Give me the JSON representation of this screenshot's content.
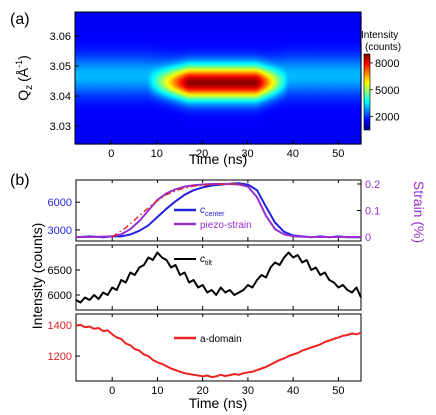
{
  "chart_data": [
    {
      "panel": "(a)",
      "type": "heatmap",
      "xlabel": "Time (ns)",
      "ylabel": "Q",
      "ylabel_sub": "z",
      "ylabel_unit": "(Å",
      "ylabel_sup": "-1",
      "ylabel_close": ")",
      "xlim": [
        -8,
        55
      ],
      "ylim": [
        3.024,
        3.068
      ],
      "xticks": [
        0,
        10,
        20,
        30,
        40,
        50
      ],
      "yticks": [
        3.03,
        3.04,
        3.05,
        3.06
      ],
      "ytick_labels": [
        "3.03",
        "3.04",
        "3.05",
        "3.06"
      ],
      "colorbar": {
        "title_line1": "Intensity",
        "title_line2": "(counts)",
        "range": [
          500,
          9000
        ],
        "ticks": [
          2000,
          5000,
          8000
        ],
        "colors": [
          "#000080",
          "#0000ff",
          "#0080ff",
          "#00ffff",
          "#80ff80",
          "#ffff00",
          "#ff8000",
          "#ff0000",
          "#800000"
        ]
      },
      "peak": {
        "q_center": 3.0445,
        "q_width": 0.0055,
        "max_counts": 8300,
        "rise_start": 8,
        "rise_end": 17,
        "fall_start": 32,
        "fall_end": 39,
        "base_counts": 1500
      }
    },
    {
      "panel": "(b)",
      "type": "line",
      "xlabel": "Time (ns)",
      "ylabel": "Intensity (counts)",
      "xlim": [
        -8,
        55
      ],
      "xticks": [
        0,
        10,
        20,
        30,
        40,
        50
      ],
      "subplots": [
        {
          "ylim": [
            1800,
            8400
          ],
          "yticks": [
            3000,
            6000
          ],
          "right_axis": {
            "label": "Strain (%)",
            "ylim": [
              -0.015,
              0.215
            ],
            "ticks": [
              0,
              0.1,
              0.2
            ],
            "tick_labels": [
              "0",
              "0.1",
              "0.2"
            ],
            "color": "#9a2fd0"
          },
          "series": [
            {
              "name": "c",
              "name_sub": "center",
              "color": "#2222dd",
              "x": [
                -8,
                -5,
                -2,
                0,
                2,
                4,
                6,
                8,
                10,
                12,
                14,
                16,
                18,
                20,
                22,
                24,
                26,
                28,
                30,
                32,
                34,
                36,
                38,
                40,
                42,
                44,
                46,
                48,
                50,
                52,
                55
              ],
              "y": [
                2200,
                2300,
                2200,
                2300,
                2300,
                2500,
                2900,
                3500,
                4400,
                5300,
                6100,
                6800,
                7300,
                7600,
                7800,
                7900,
                8000,
                8050,
                7900,
                7300,
                5500,
                3800,
                2800,
                2400,
                2300,
                2200,
                2300,
                2200,
                2300,
                2200,
                2200
              ]
            },
            {
              "name": "piezo-strain",
              "color": "#9a2fd0",
              "axis": "right",
              "x": [
                -8,
                -4,
                0,
                2,
                4,
                6,
                8,
                10,
                12,
                14,
                16,
                18,
                20,
                22,
                24,
                26,
                28,
                30,
                32,
                34,
                36,
                38,
                40,
                42,
                44,
                48,
                52,
                55
              ],
              "y": [
                0,
                0,
                0.003,
                0.01,
                0.03,
                0.06,
                0.1,
                0.14,
                0.165,
                0.18,
                0.19,
                0.195,
                0.198,
                0.2,
                0.2,
                0.2,
                0.198,
                0.19,
                0.15,
                0.08,
                0.03,
                0.01,
                0.003,
                0.001,
                0,
                0,
                0,
                0
              ]
            },
            {
              "style": "dash-dot",
              "color": "#dd2222",
              "axis": "right",
              "x": [
                0,
                3,
                6,
                9,
                12,
                15,
                18,
                22,
                26,
                29
              ],
              "y": [
                0.0,
                0.035,
                0.08,
                0.125,
                0.16,
                0.18,
                0.192,
                0.198,
                0.2,
                0.2
              ]
            }
          ]
        },
        {
          "ylim": [
            5700,
            7000
          ],
          "yticks": [
            6000,
            6500
          ],
          "series": [
            {
              "name": "c",
              "name_sub": "tilt",
              "color": "#000000",
              "x": [
                -8,
                -7,
                -6,
                -5,
                -4,
                -3,
                -2,
                -1,
                0,
                1,
                2,
                3,
                4,
                5,
                6,
                7,
                8,
                9,
                10,
                11,
                12,
                13,
                14,
                15,
                16,
                17,
                18,
                19,
                20,
                21,
                22,
                23,
                24,
                25,
                26,
                27,
                28,
                29,
                30,
                31,
                32,
                33,
                34,
                35,
                36,
                37,
                38,
                39,
                40,
                41,
                42,
                43,
                44,
                45,
                46,
                47,
                48,
                49,
                50,
                51,
                52,
                53,
                54,
                55
              ],
              "y": [
                5900,
                5850,
                5950,
                5900,
                6000,
                5920,
                6050,
                6000,
                6150,
                6100,
                6300,
                6250,
                6450,
                6400,
                6550,
                6600,
                6750,
                6700,
                6850,
                6750,
                6700,
                6550,
                6600,
                6400,
                6450,
                6250,
                6300,
                6150,
                6200,
                6050,
                6100,
                6000,
                6150,
                6050,
                6100,
                6000,
                6050,
                6100,
                6200,
                6150,
                6300,
                6400,
                6350,
                6550,
                6650,
                6600,
                6750,
                6850,
                6750,
                6800,
                6650,
                6700,
                6500,
                6550,
                6400,
                6450,
                6300,
                6250,
                6150,
                6200,
                6100,
                6050,
                6150,
                5950
              ]
            }
          ]
        },
        {
          "ylim": [
            1040,
            1470
          ],
          "yticks": [
            1200,
            1400
          ],
          "series": [
            {
              "name": "a-domain",
              "color": "#ee2222",
              "x": [
                -8,
                -7,
                -6,
                -5,
                -4,
                -3,
                -2,
                -1,
                0,
                1,
                2,
                3,
                4,
                5,
                6,
                7,
                8,
                9,
                10,
                11,
                12,
                13,
                14,
                15,
                16,
                17,
                18,
                19,
                20,
                21,
                22,
                23,
                24,
                25,
                26,
                27,
                28,
                29,
                30,
                31,
                32,
                33,
                34,
                35,
                36,
                37,
                38,
                39,
                40,
                41,
                42,
                43,
                44,
                45,
                46,
                47,
                48,
                49,
                50,
                51,
                52,
                53,
                54,
                55
              ],
              "y": [
                1395,
                1400,
                1385,
                1390,
                1375,
                1380,
                1360,
                1365,
                1340,
                1320,
                1310,
                1280,
                1270,
                1245,
                1235,
                1210,
                1200,
                1175,
                1160,
                1150,
                1135,
                1120,
                1110,
                1100,
                1090,
                1085,
                1080,
                1075,
                1070,
                1075,
                1065,
                1070,
                1080,
                1072,
                1078,
                1085,
                1080,
                1090,
                1095,
                1100,
                1110,
                1120,
                1130,
                1145,
                1160,
                1175,
                1185,
                1200,
                1210,
                1220,
                1235,
                1245,
                1255,
                1265,
                1275,
                1290,
                1300,
                1310,
                1320,
                1330,
                1335,
                1345,
                1340,
                1350
              ]
            }
          ]
        }
      ]
    }
  ]
}
